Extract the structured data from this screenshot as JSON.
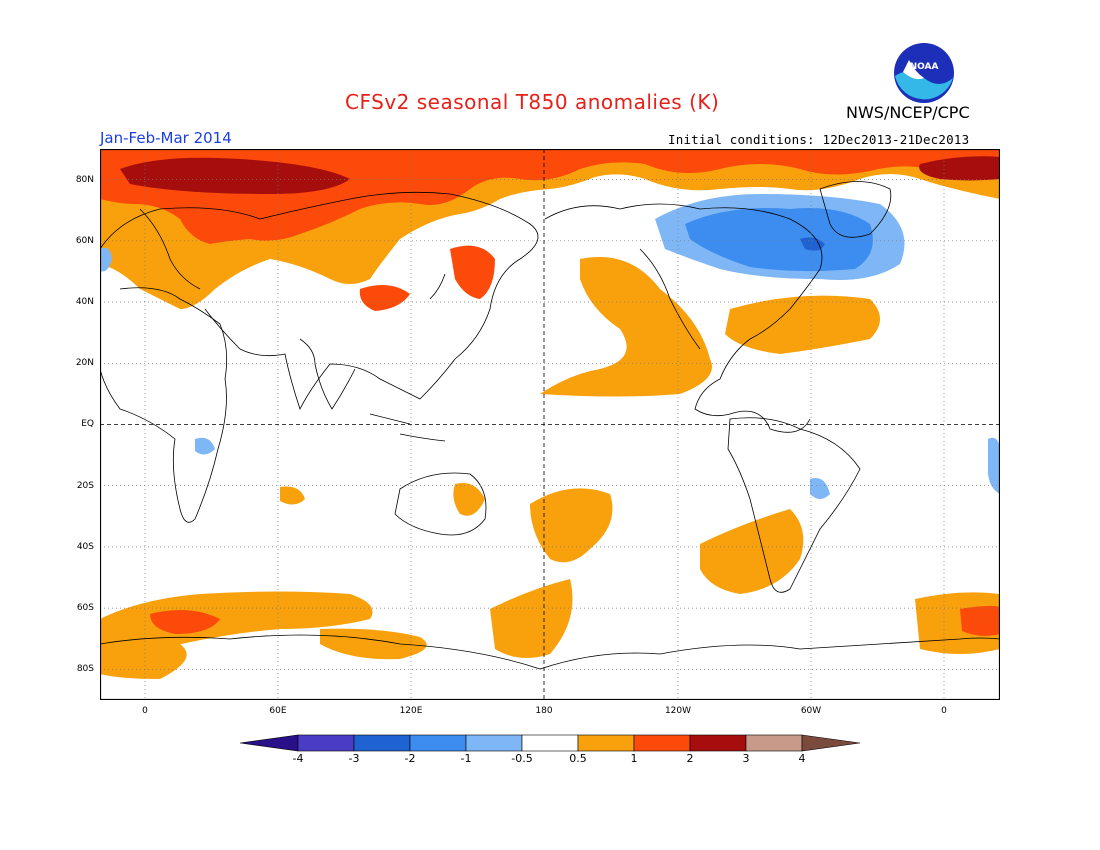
{
  "header": {
    "title": "CFSv2 seasonal T850 anomalies (K)",
    "season": "Jan-Feb-Mar 2014",
    "agency": "NWS/NCEP/CPC",
    "init_conditions": "Initial conditions: 12Dec2013-21Dec2013",
    "logo_text": "NOAA"
  },
  "map": {
    "projection": "cylindrical equidistant, centered on 180",
    "lat_labels": [
      "80N",
      "60N",
      "40N",
      "20N",
      "EQ",
      "20S",
      "40S",
      "60S",
      "80S"
    ],
    "lon_labels": [
      "0",
      "60E",
      "120E",
      "180",
      "120W",
      "60W",
      "0"
    ],
    "gridlines": "dotted",
    "reference_lines": [
      "Equator",
      "180"
    ]
  },
  "colorbar": {
    "ticks": [
      "-4",
      "-3",
      "-2",
      "-1",
      "-0.5",
      "0.5",
      "1",
      "2",
      "3",
      "4"
    ],
    "bins": [
      {
        "range": "<-4",
        "color": "#2a0f8a"
      },
      {
        "range": "-4 to -3",
        "color": "#4a3cc4"
      },
      {
        "range": "-3 to -2",
        "color": "#1f62d2"
      },
      {
        "range": "-2 to -1",
        "color": "#3d8cef"
      },
      {
        "range": "-1 to -0.5",
        "color": "#7fb6f5"
      },
      {
        "range": "-0.5 to 0.5",
        "color": "#ffffff"
      },
      {
        "range": "0.5 to 1",
        "color": "#f8a10c"
      },
      {
        "range": "1 to 2",
        "color": "#fb4a0a"
      },
      {
        "range": "2 to 3",
        "color": "#a60d0d"
      },
      {
        "range": "3 to 4",
        "color": "#c79a8a"
      },
      {
        "range": ">4",
        "color": "#7a4a3c"
      }
    ]
  }
}
